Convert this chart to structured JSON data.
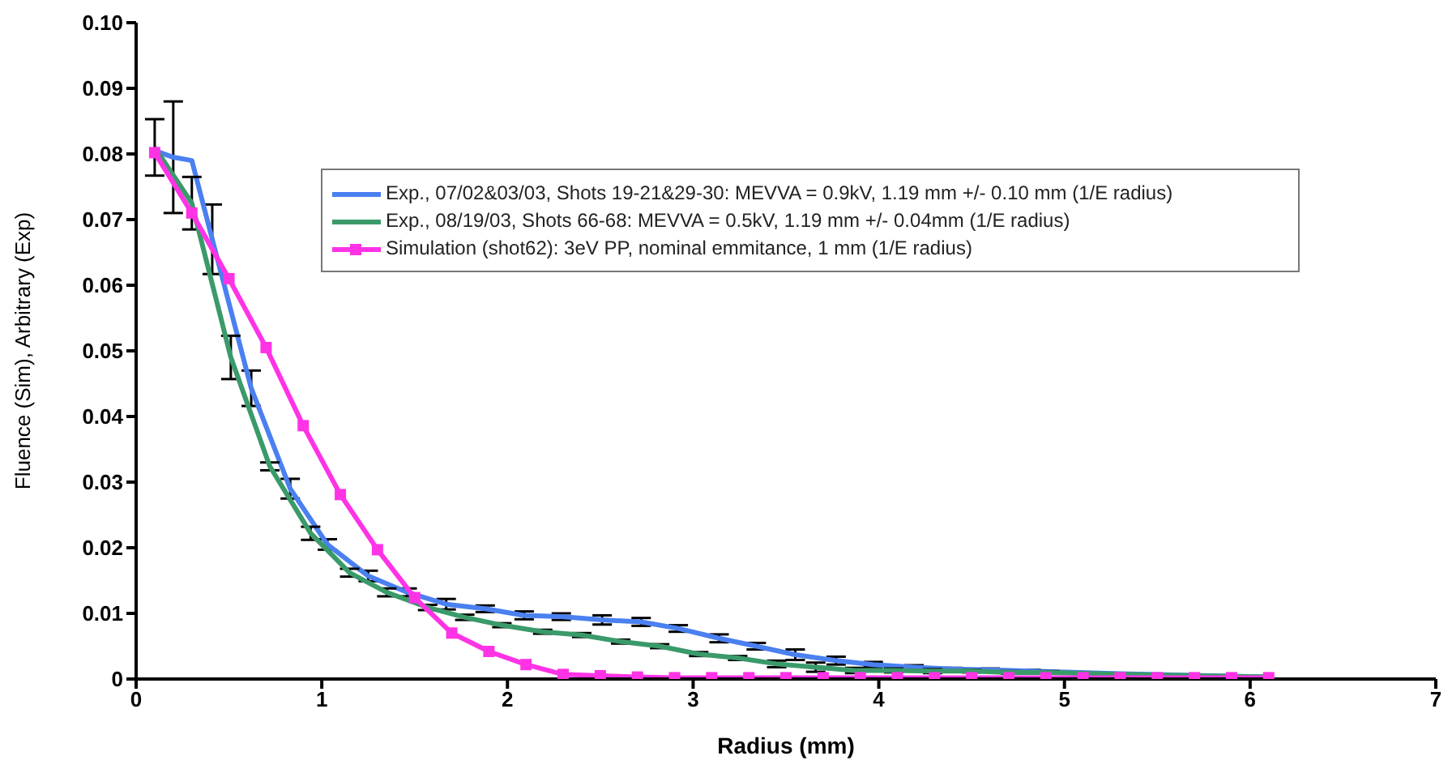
{
  "chart_data": {
    "type": "line",
    "xlabel": "Radius (mm)",
    "ylabel": "Fluence (Sim), Arbitrary (Exp)",
    "xlim": [
      0,
      7
    ],
    "xticks": [
      0,
      1,
      2,
      3,
      4,
      5,
      6,
      7
    ],
    "ylim": [
      0,
      0.1
    ],
    "yticks": [
      0,
      0.01,
      0.02,
      0.03,
      0.04,
      0.05,
      0.06,
      0.07,
      0.08,
      0.09,
      {
        "value": 0.1,
        "label": "0.10"
      }
    ],
    "grid": false,
    "legend": "top",
    "line_style": "solid",
    "series": [
      {
        "name": "Exp., 07/02&03/03, Shots 19-21&29-30: MEVVA = 0.9kV, 1.19 mm +/- 0.10 mm (1/E radius)",
        "color": "#4a80f0",
        "marker": "none",
        "x": [
          0.1,
          0.2,
          0.3,
          0.41,
          0.62,
          0.83,
          1.03,
          1.25,
          1.46,
          1.67,
          1.88,
          2.09,
          2.29,
          2.51,
          2.72,
          2.92,
          3.14,
          3.34,
          3.55,
          3.77,
          3.97,
          4.19,
          4.4,
          4.6,
          4.82,
          5.3,
          6.1
        ],
        "values": [
          0.0805,
          0.0795,
          0.079,
          0.067,
          0.0443,
          0.029,
          0.0205,
          0.0157,
          0.0132,
          0.0114,
          0.0107,
          0.0097,
          0.0095,
          0.009,
          0.0087,
          0.0077,
          0.0062,
          0.005,
          0.0037,
          0.0028,
          0.0022,
          0.0018,
          0.0015,
          0.0014,
          0.0012,
          0.0008,
          0.0003
        ],
        "errors": [
          null,
          0.0085,
          null,
          0.0053,
          0.0027,
          0.0015,
          0.0008,
          0.0008,
          0.0006,
          0.0008,
          0.0005,
          0.0006,
          0.0005,
          0.0007,
          0.0006,
          0.0005,
          0.0006,
          0.0005,
          0.0008,
          0.0006,
          0.0004,
          0.0003,
          0.0002,
          0.0002,
          0.0002,
          null,
          null
        ]
      },
      {
        "name": "Exp., 08/19/03, Shots 66-68: MEVVA = 0.5kV, 1.19 mm +/- 0.04mm (1/E radius)",
        "color": "#3a9a6a",
        "marker": "none",
        "x": [
          0.1,
          0.3,
          0.51,
          0.72,
          0.94,
          1.15,
          1.35,
          1.57,
          1.77,
          1.97,
          2.19,
          2.4,
          2.61,
          2.82,
          3.03,
          3.24,
          3.45,
          3.66,
          3.87,
          4.08,
          4.29,
          4.5,
          4.71,
          4.92,
          5.3,
          6.1
        ],
        "values": [
          0.081,
          0.0725,
          0.049,
          0.0324,
          0.0222,
          0.0162,
          0.0132,
          0.0109,
          0.0094,
          0.0082,
          0.0072,
          0.0067,
          0.0057,
          0.005,
          0.0038,
          0.0032,
          0.0023,
          0.0018,
          0.0013,
          0.0013,
          0.0012,
          0.0012,
          0.001,
          0.001,
          0.0007,
          0.0003
        ],
        "errors": [
          0.0043,
          0.004,
          0.0033,
          0.0006,
          0.001,
          0.0006,
          0.0006,
          0.0004,
          0.0004,
          0.0003,
          0.0003,
          0.0003,
          0.0003,
          0.0003,
          0.0003,
          0.0003,
          0.0005,
          0.0007,
          0.0004,
          0.0003,
          0.0003,
          0.0002,
          0.0002,
          0.0002,
          null,
          null
        ]
      },
      {
        "name": "Simulation (shot62): 3eV PP, nominal emmitance, 1 mm (1/E radius)",
        "color": "#ff33e6",
        "marker": "square",
        "x": [
          0.1,
          0.3,
          0.5,
          0.7,
          0.9,
          1.1,
          1.3,
          1.5,
          1.7,
          1.9,
          2.1,
          2.3,
          2.5,
          2.7,
          2.9,
          3.1,
          3.3,
          3.5,
          3.7,
          3.9,
          4.1,
          4.3,
          4.5,
          4.7,
          4.9,
          5.1,
          5.3,
          5.5,
          5.7,
          5.9,
          6.1
        ],
        "values": [
          0.0802,
          0.071,
          0.061,
          0.0505,
          0.0386,
          0.0281,
          0.0197,
          0.0124,
          0.007,
          0.0042,
          0.0022,
          0.0007,
          0.0005,
          0.0003,
          0.0002,
          0.0002,
          0.0002,
          0.0002,
          0.0002,
          0.0002,
          0.0002,
          0.0002,
          0.0002,
          0.0002,
          0.0002,
          0.0002,
          0.0002,
          0.0002,
          0.0002,
          0.0002,
          0.0002
        ]
      }
    ]
  }
}
